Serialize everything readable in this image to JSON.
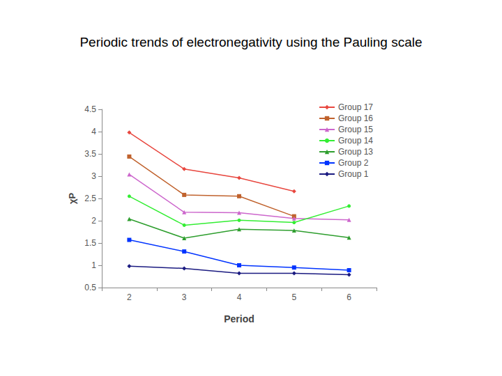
{
  "chart_data": {
    "type": "line",
    "title": "Periodic trends of electronegativity using the Pauling scale",
    "x_label": "Period",
    "y_label": "χP",
    "categories": [
      "2",
      "3",
      "4",
      "5",
      "6"
    ],
    "series": [
      {
        "name": "Group 17",
        "color": "#e8473f",
        "marker": "diamond",
        "values": [
          3.98,
          3.16,
          2.96,
          2.66,
          null
        ]
      },
      {
        "name": "Group 16",
        "color": "#c0622d",
        "marker": "square",
        "values": [
          3.44,
          2.58,
          2.55,
          2.1,
          null
        ]
      },
      {
        "name": "Group 15",
        "color": "#cc66cc",
        "marker": "triangle",
        "values": [
          3.04,
          2.19,
          2.18,
          2.05,
          2.02
        ]
      },
      {
        "name": "Group 14",
        "color": "#33ee33",
        "marker": "circle",
        "values": [
          2.55,
          1.9,
          2.01,
          1.96,
          2.33
        ]
      },
      {
        "name": "Group 13",
        "color": "#2e9e2e",
        "marker": "triangle",
        "values": [
          2.04,
          1.61,
          1.81,
          1.78,
          1.62
        ]
      },
      {
        "name": "Group 2",
        "color": "#0033ff",
        "marker": "square",
        "values": [
          1.57,
          1.31,
          1.0,
          0.95,
          0.89
        ]
      },
      {
        "name": "Group 1",
        "color": "#1a1a80",
        "marker": "diamond",
        "values": [
          0.98,
          0.93,
          0.82,
          0.82,
          0.79
        ]
      }
    ],
    "ylim": [
      0.5,
      4.5
    ],
    "yticks": [
      0.5,
      1,
      1.5,
      2,
      2.5,
      3,
      3.5,
      4,
      4.5
    ],
    "grid": false,
    "legend": "upper right"
  }
}
